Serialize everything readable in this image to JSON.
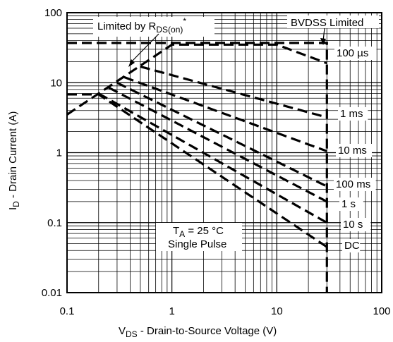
{
  "chart_data": {
    "type": "line",
    "title": "",
    "x_scale": "log",
    "y_scale": "log",
    "xlim": [
      0.1,
      100
    ],
    "ylim": [
      0.01,
      100
    ],
    "grid": true,
    "x_ticks": [
      "0.1",
      "1",
      "10",
      "100"
    ],
    "y_ticks": [
      "100",
      "10",
      "1",
      "0.1",
      "0.01"
    ],
    "xlabel": {
      "main": "V",
      "sub": "DS",
      "rest": " - Drain-to-Source Voltage (V)"
    },
    "ylabel": {
      "main": "I",
      "sub": "D",
      "rest": " - Drain Current (A)"
    },
    "annotations": {
      "rds": {
        "main": "Limited by R",
        "sub": "DS(on)",
        "sup": "*"
      },
      "bvdss": "BVDSS Limited",
      "ta_main": "T",
      "ta_sub": "A",
      "ta_rest": " = 25 °C",
      "pulse": "Single Pulse"
    },
    "series": [
      {
        "name": "100 µs",
        "x": [
          0.1,
          1,
          10,
          30
        ],
        "y": [
          3.5,
          35,
          35,
          19
        ]
      },
      {
        "name": "1 ms",
        "x": [
          0.5,
          30
        ],
        "y": [
          17,
          3.2
        ]
      },
      {
        "name": "10 ms",
        "x": [
          0.35,
          30
        ],
        "y": [
          12,
          1.05
        ]
      },
      {
        "name": "100 ms",
        "x": [
          0.3,
          30
        ],
        "y": [
          10,
          0.33
        ]
      },
      {
        "name": "1 s",
        "x": [
          0.25,
          30
        ],
        "y": [
          8.5,
          0.2
        ]
      },
      {
        "name": "10 s",
        "x": [
          0.2,
          30
        ],
        "y": [
          7,
          0.1
        ]
      },
      {
        "name": "DC",
        "x": [
          0.1,
          0.2,
          30
        ],
        "y": [
          6.8,
          6.8,
          0.045
        ]
      },
      {
        "name": "",
        "x": [
          0.1,
          30,
          30
        ],
        "y": [
          37,
          37,
          0.01
        ]
      }
    ]
  }
}
